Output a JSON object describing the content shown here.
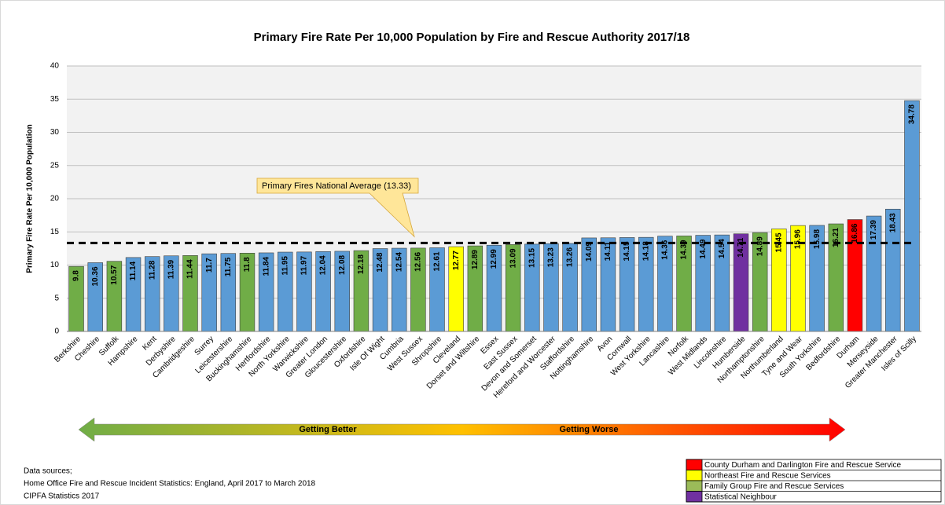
{
  "chart_data": {
    "type": "bar",
    "title": "Primary Fire Rate Per 10,000 Population by Fire and Rescue Authority 2017/18",
    "y_label": "Primary Fire Rate Per 10,000 Population",
    "categories": [
      "Berkshire",
      "Cheshire",
      "Suffolk",
      "Hampshire",
      "Kent",
      "Derbyshire",
      "Cambridgeshire",
      "Surrey",
      "Leicestershire",
      "Buckinghamshire",
      "Hertfordshire",
      "North Yorkshire",
      "Warwickshire",
      "Greater London",
      "Gloucestershire",
      "Oxfordshire",
      "Isle Of Wight",
      "Cumbria",
      "West Sussex",
      "Shropshire",
      "Cleveland",
      "Dorset and Wiltshire",
      "Essex",
      "East Sussex",
      "Devon and Somerset",
      "Hereford and Worcester",
      "Staffordshire",
      "Nottinghamshire",
      "Avon",
      "Cornwall",
      "West Yorkshire",
      "Lancashire",
      "Norfolk",
      "West Midlands",
      "Lincolnshire",
      "Humberside",
      "Northamptonshire",
      "Northumberland",
      "Tyne and Wear",
      "South Yorkshire",
      "Bedfordshire",
      "Durham",
      "Merseyside",
      "Greater Manchester",
      "Isles of Scilly"
    ],
    "values": [
      9.8,
      10.36,
      10.57,
      11.14,
      11.28,
      11.39,
      11.44,
      11.7,
      11.75,
      11.8,
      11.84,
      11.95,
      11.97,
      12.04,
      12.08,
      12.18,
      12.48,
      12.54,
      12.56,
      12.61,
      12.77,
      12.89,
      12.99,
      13.09,
      13.15,
      13.23,
      13.26,
      14.09,
      14.11,
      14.15,
      14.18,
      14.36,
      14.39,
      14.49,
      14.54,
      14.71,
      14.89,
      15.45,
      15.96,
      15.98,
      16.21,
      16.86,
      17.39,
      18.43,
      34.78
    ],
    "colors": [
      "#70ad47",
      "#5b9bd5",
      "#70ad47",
      "#5b9bd5",
      "#5b9bd5",
      "#5b9bd5",
      "#70ad47",
      "#5b9bd5",
      "#5b9bd5",
      "#70ad47",
      "#5b9bd5",
      "#5b9bd5",
      "#5b9bd5",
      "#5b9bd5",
      "#5b9bd5",
      "#70ad47",
      "#5b9bd5",
      "#5b9bd5",
      "#70ad47",
      "#5b9bd5",
      "#ffff00",
      "#70ad47",
      "#5b9bd5",
      "#70ad47",
      "#5b9bd5",
      "#5b9bd5",
      "#5b9bd5",
      "#5b9bd5",
      "#5b9bd5",
      "#5b9bd5",
      "#5b9bd5",
      "#5b9bd5",
      "#70ad47",
      "#5b9bd5",
      "#5b9bd5",
      "#7030a0",
      "#70ad47",
      "#ffff00",
      "#ffff00",
      "#5b9bd5",
      "#70ad47",
      "#ff0000",
      "#5b9bd5",
      "#5b9bd5",
      "#5b9bd5"
    ],
    "ylim": [
      0,
      40
    ],
    "yticks": [
      0,
      5,
      10,
      15,
      20,
      25,
      30,
      35,
      40
    ],
    "grid": true,
    "average": {
      "label": "Primary Fires National Average (13.33)",
      "value": 13.33
    },
    "arrow_labels": [
      "Getting Better",
      "Getting Worse"
    ],
    "legend": [
      {
        "name": "County Durham and Darlington Fire and Rescue Service",
        "color": "#ff0000"
      },
      {
        "name": "Northeast Fire and Rescue Services",
        "color": "#ffff00"
      },
      {
        "name": "Family Group Fire and Rescue Services",
        "color": "#9bbb59"
      },
      {
        "name": "Statistical Neighbour",
        "color": "#7030a0"
      }
    ],
    "sources": [
      "Data sources;",
      "Home Office Fire and Rescue Incident Statistics: England, April 2017 to March 2018",
      "CIPFA Statistics 2017"
    ]
  }
}
